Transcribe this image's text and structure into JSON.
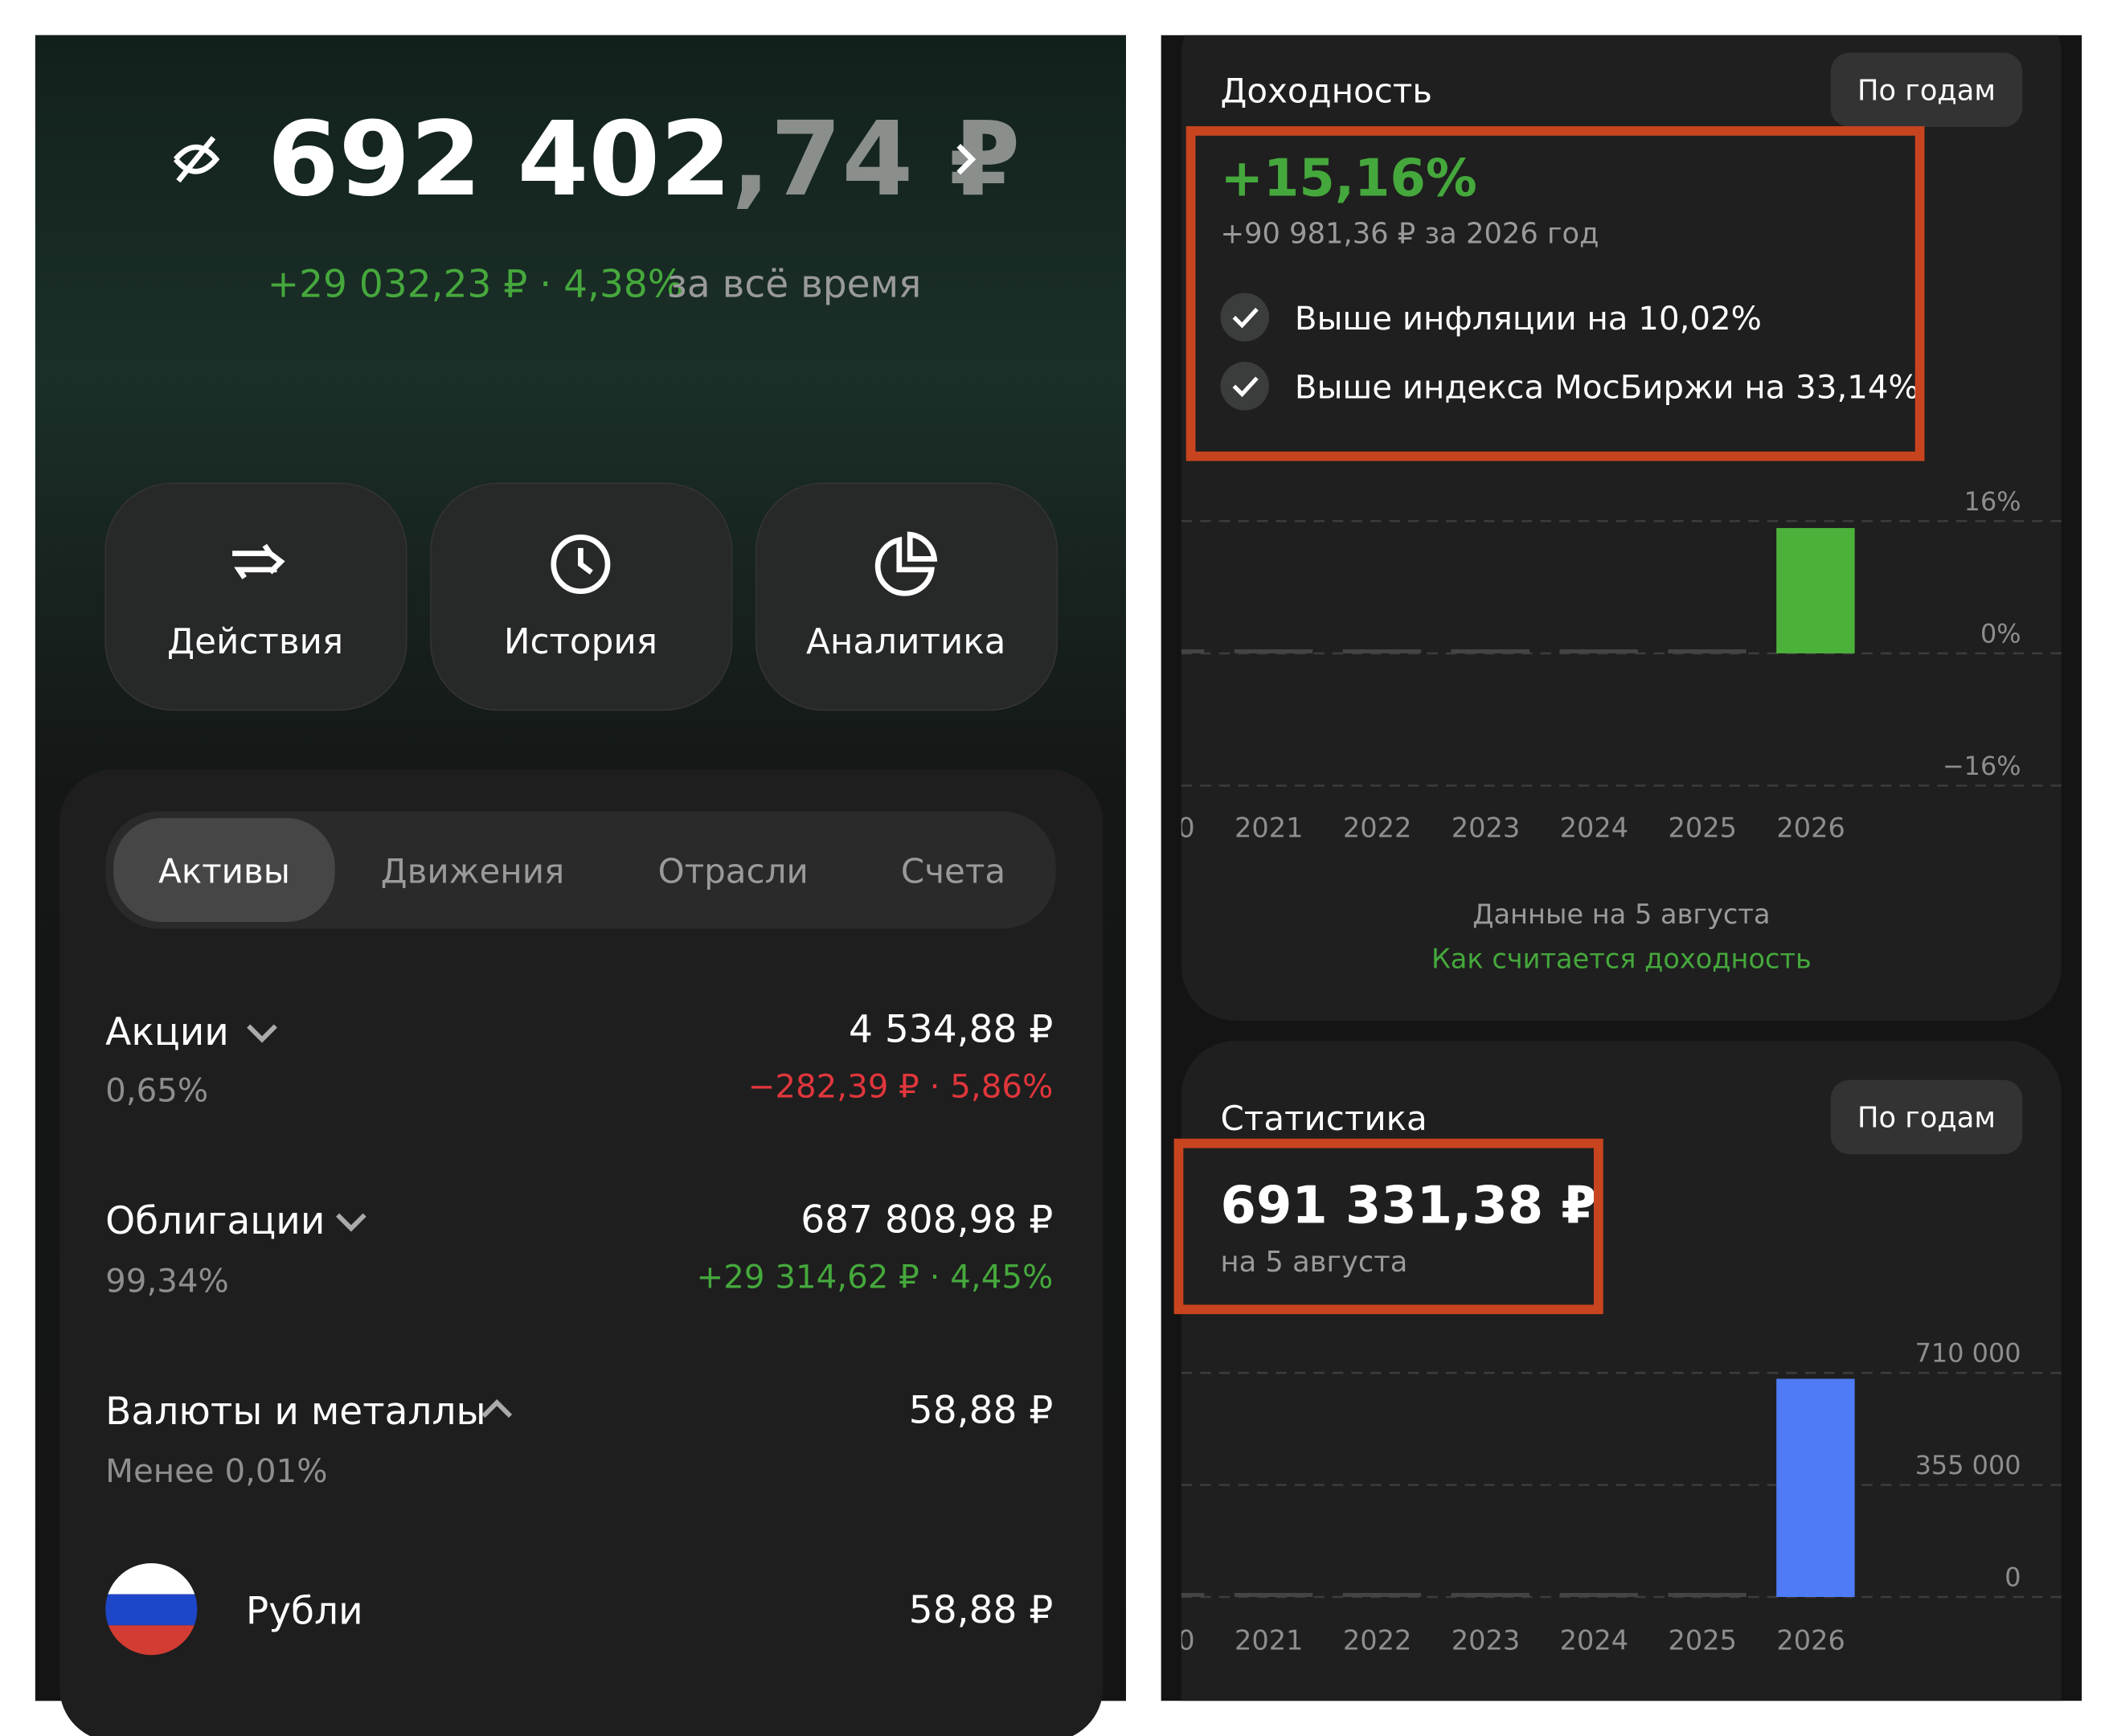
{
  "portfolio": {
    "value_main": "692 402",
    "value_fraction": ",74 ₽",
    "change": "+29 032,23 ₽ · 4,38%",
    "period": "за всё время"
  },
  "actions": [
    "Действия",
    "История",
    "Аналитика"
  ],
  "tabs": [
    "Активы",
    "Движения",
    "Отрасли",
    "Счета"
  ],
  "assets": [
    {
      "name": "Акции",
      "share": "0,65%",
      "value": "4 534,88 ₽",
      "change": "−282,39 ₽ · 5,86%"
    },
    {
      "name": "Облигации",
      "share": "99,34%",
      "value": "687 808,98 ₽",
      "change": "+29 314,62 ₽ · 4,45%"
    },
    {
      "name": "Валюты и металлы",
      "share": "Менее 0,01%",
      "value": "58,88 ₽"
    }
  ],
  "currency_item": {
    "name": "Рубли",
    "value": "58,88 ₽"
  },
  "returns": {
    "title": "Доходность",
    "button": "По годам",
    "headline": "+15,16%",
    "subline": "+90 981,36 ₽ за 2026 год",
    "checks": [
      "Выше инфляции на 10,02%",
      "Выше индекса МосБиржи на 33,14%"
    ],
    "chart": {
      "type": "bar",
      "categories": [
        "0",
        "2021",
        "2022",
        "2023",
        "2024",
        "2025",
        "2026"
      ],
      "values": [
        0,
        0,
        0,
        0,
        0,
        0,
        15.16
      ],
      "color": "#4cb13a",
      "ylim": [
        -16,
        16
      ],
      "yticks": [
        {
          "value": 16,
          "label": "16%"
        },
        {
          "value": 0,
          "label": "0%"
        },
        {
          "value": -16,
          "label": "−16%"
        }
      ],
      "grid": true
    },
    "note": "Данные на 5 августа",
    "link": "Как считается доходность"
  },
  "statistics": {
    "title": "Статистика",
    "button": "По годам",
    "value": "691 331,38 ₽",
    "date": "на 5 августа",
    "chart": {
      "type": "bar",
      "categories": [
        "0",
        "2021",
        "2022",
        "2023",
        "2024",
        "2025",
        "2026"
      ],
      "values": [
        0,
        0,
        0,
        0,
        0,
        0,
        691331.38
      ],
      "color": "#4f7cf6",
      "ylim": [
        0,
        710000
      ],
      "yticks": [
        {
          "value": 710000,
          "label": "710 000"
        },
        {
          "value": 355000,
          "label": "355 000"
        },
        0
      ],
      "grid": true
    }
  }
}
